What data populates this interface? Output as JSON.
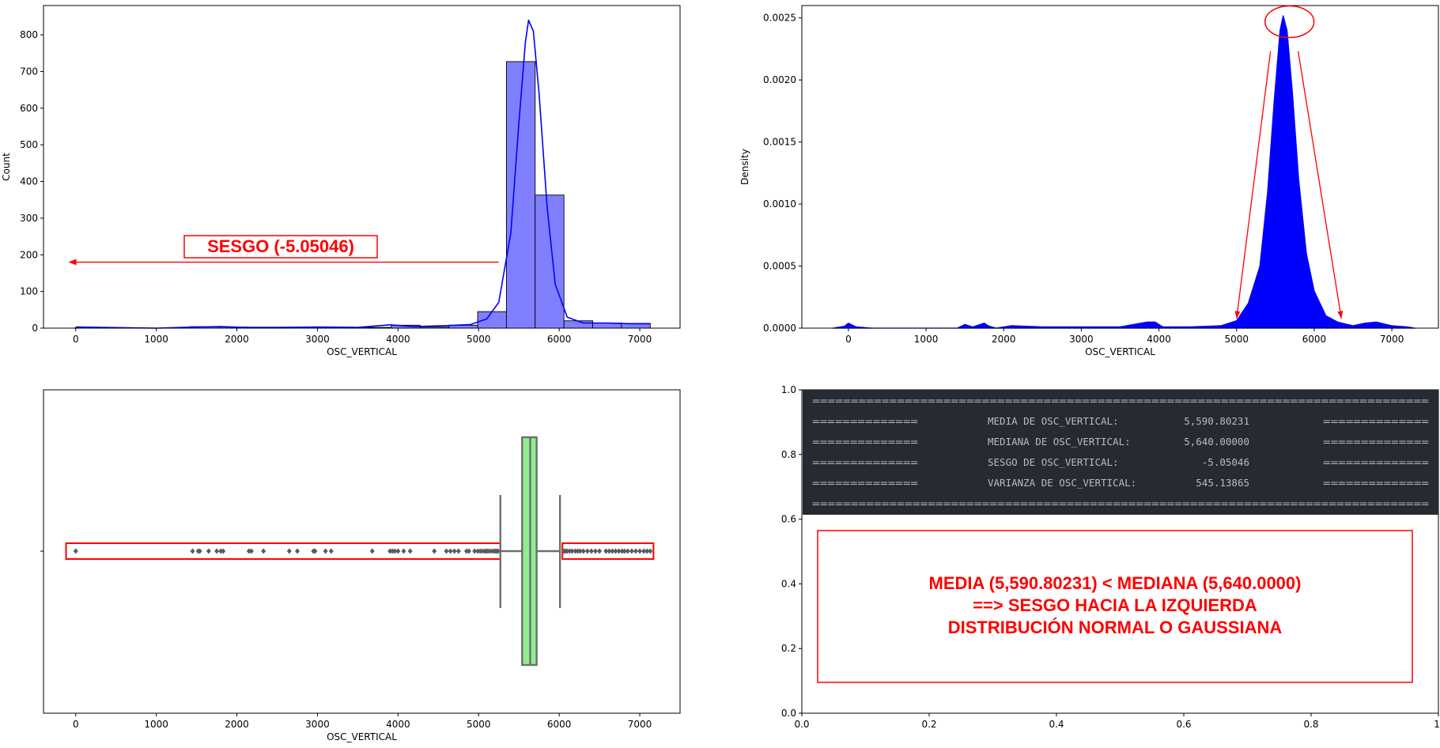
{
  "chart_data": [
    {
      "type": "bar",
      "subtype": "histogram-with-kde",
      "xlabel": "OSC_VERTICAL",
      "ylabel": "Count",
      "xlim": [
        -400,
        7500
      ],
      "ylim": [
        0,
        880
      ],
      "xticks": [
        0,
        1000,
        2000,
        3000,
        4000,
        5000,
        6000,
        7000
      ],
      "yticks": [
        0,
        100,
        200,
        300,
        400,
        500,
        600,
        700,
        800
      ],
      "bins": [
        {
          "x0": -10,
          "x1": 347,
          "count": 1
        },
        {
          "x0": 347,
          "x1": 704,
          "count": 0
        },
        {
          "x0": 704,
          "x1": 1061,
          "count": 0
        },
        {
          "x0": 1061,
          "x1": 1418,
          "count": 0
        },
        {
          "x0": 1418,
          "x1": 1775,
          "count": 4
        },
        {
          "x0": 1775,
          "x1": 2132,
          "count": 3
        },
        {
          "x0": 2132,
          "x1": 2489,
          "count": 2
        },
        {
          "x0": 2489,
          "x1": 2846,
          "count": 2
        },
        {
          "x0": 2846,
          "x1": 3203,
          "count": 3
        },
        {
          "x0": 3203,
          "x1": 3560,
          "count": 0
        },
        {
          "x0": 3560,
          "x1": 3917,
          "count": 2
        },
        {
          "x0": 3917,
          "x1": 4274,
          "count": 8
        },
        {
          "x0": 4274,
          "x1": 4631,
          "count": 3
        },
        {
          "x0": 4631,
          "x1": 4988,
          "count": 8
        },
        {
          "x0": 4988,
          "x1": 5345,
          "count": 45
        },
        {
          "x0": 5345,
          "x1": 5702,
          "count": 727
        },
        {
          "x0": 5702,
          "x1": 6059,
          "count": 363
        },
        {
          "x0": 6059,
          "x1": 6416,
          "count": 20
        },
        {
          "x0": 6416,
          "x1": 6773,
          "count": 14
        },
        {
          "x0": 6773,
          "x1": 7130,
          "count": 13
        }
      ],
      "kde": {
        "x": [
          0,
          1000,
          1500,
          1800,
          2100,
          2500,
          3000,
          3500,
          3900,
          4200,
          4600,
          4900,
          5100,
          5250,
          5400,
          5500,
          5580,
          5620,
          5680,
          5750,
          5850,
          5950,
          6100,
          6300,
          6600,
          6900,
          7130
        ],
        "y": [
          3,
          0,
          3,
          4,
          2,
          2,
          3,
          2,
          9,
          4,
          7,
          10,
          25,
          70,
          260,
          560,
          780,
          840,
          810,
          640,
          330,
          120,
          30,
          14,
          14,
          12,
          12
        ]
      },
      "annotation": {
        "text": "SESGO (-5.05046)",
        "arrow": {
          "from": 5250,
          "to": -90,
          "y": 180
        }
      }
    },
    {
      "type": "area",
      "subtype": "kde",
      "xlabel": "OSC_VERTICAL",
      "ylabel": "Density",
      "xlim": [
        -600,
        7600
      ],
      "ylim": [
        0,
        0.0026
      ],
      "xticks": [
        0,
        1000,
        2000,
        3000,
        4000,
        5000,
        6000,
        7000
      ],
      "yticks": [
        "0.0000",
        "0.0005",
        "0.0010",
        "0.0015",
        "0.0020",
        "0.0025"
      ],
      "x": [
        -200,
        -50,
        0,
        100,
        300,
        800,
        1400,
        1500,
        1600,
        1750,
        1800,
        1900,
        2100,
        2500,
        3000,
        3500,
        3850,
        3950,
        4050,
        4400,
        4800,
        5000,
        5150,
        5300,
        5400,
        5480,
        5560,
        5600,
        5650,
        5720,
        5800,
        5900,
        6000,
        6150,
        6300,
        6500,
        6650,
        6800,
        7000,
        7200,
        7300
      ],
      "y": [
        0,
        1.5e-05,
        4e-05,
        1e-05,
        0,
        0,
        0,
        3e-05,
        1e-05,
        4e-05,
        2e-05,
        0,
        2e-05,
        1e-05,
        1e-05,
        1e-05,
        5e-05,
        5e-05,
        1e-05,
        1e-05,
        2e-05,
        6e-05,
        0.0002,
        0.0005,
        0.0011,
        0.0018,
        0.0024,
        0.00252,
        0.0024,
        0.0019,
        0.0012,
        0.0006,
        0.0003,
        0.0001,
        5e-05,
        2e-05,
        4e-05,
        5e-05,
        2e-05,
        1e-05,
        0
      ],
      "annotation": {
        "marker": "peak-circle",
        "arrows_to": [
          5000,
          6350
        ]
      }
    },
    {
      "type": "scatter",
      "subtype": "boxplot",
      "xlabel": "OSC_VERTICAL",
      "xlim": [
        -400,
        7500
      ],
      "xticks": [
        0,
        1000,
        2000,
        3000,
        4000,
        5000,
        6000,
        7000
      ],
      "box": {
        "whisker_low": 5270,
        "q1": 5540,
        "median": 5640,
        "q3": 5720,
        "whisker_high": 6010,
        "color": "#90ee90"
      },
      "outliers": [
        0,
        1450,
        1520,
        1540,
        1650,
        1750,
        1800,
        1830,
        2150,
        2180,
        2330,
        2650,
        2750,
        2950,
        2970,
        3100,
        3170,
        3680,
        3900,
        3930,
        3960,
        4000,
        4070,
        4150,
        4450,
        4600,
        4650,
        4700,
        4750,
        4850,
        4880,
        4950,
        4990,
        5020,
        5050,
        5080,
        5100,
        5120,
        5150,
        5180,
        5200,
        5220,
        5240,
        6060,
        6080,
        6100,
        6130,
        6160,
        6200,
        6230,
        6260,
        6300,
        6350,
        6400,
        6450,
        6500,
        6580,
        6620,
        6660,
        6700,
        6740,
        6780,
        6810,
        6850,
        6900,
        6950,
        7000,
        7050,
        7090,
        7130
      ],
      "highlight_ranges": [
        [
          -120,
          5270
        ],
        [
          6040,
          7170
        ]
      ]
    },
    {
      "type": "table",
      "subtype": "text-panel",
      "xlim": [
        0,
        1
      ],
      "ylim": [
        0,
        1
      ],
      "xticks": [
        "0.0",
        "0.2",
        "0.4",
        "0.6",
        "0.8",
        "1."
      ],
      "yticks": [
        "0.0",
        "0.2",
        "0.4",
        "0.6",
        "0.8",
        "1.0"
      ],
      "stats": [
        {
          "label": "MEDIA DE OSC_VERTICAL:",
          "value": "5,590.80231"
        },
        {
          "label": "MEDIANA DE OSC_VERTICAL:",
          "value": "5,640.00000"
        },
        {
          "label": "SESGO DE OSC_VERTICAL:",
          "value": "-5.05046"
        },
        {
          "label": "VARIANZA DE OSC_VERTICAL:",
          "value": "545.13865"
        }
      ],
      "border_line": "================================================================================",
      "side_line": "==============",
      "note": [
        "MEDIA (5,590.80231)  <  MEDIANA (5,640.0000)",
        "==> SESGO HACIA LA IZQUIERDA",
        "DISTRIBUCIÓN NORMAL O GAUSSIANA"
      ]
    }
  ],
  "colors": {
    "hist_fill": "#8080ff",
    "kde_line": "#0000ff",
    "kde_fill": "#0000ff",
    "box_fill": "#90ee90",
    "box_edge": "#6e6e6e",
    "annotation": "#ff0000",
    "terminal_bg": "#262a33",
    "terminal_text": "#b8bcc4"
  }
}
